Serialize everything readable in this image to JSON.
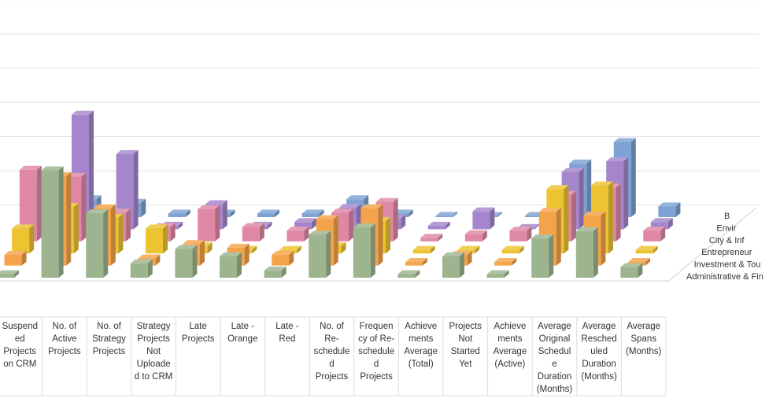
{
  "chart_data": {
    "type": "bar",
    "view": "3d-column",
    "title": "",
    "categories": [
      "Suspended Projects on CRM",
      "No. of Active Projects",
      "No. of Strategy Projects",
      "Strategy Projects Not Uploaded to CRM",
      "Late Projects",
      "Late - Orange",
      "Late - Red",
      "No. of Re-scheduled Projects",
      "Frequency of Re-schedule d Projects",
      "Achievements Average (Total)",
      "Projects Not Started Yet",
      "Achievements Average (Active)",
      "Average Original Schedule Duration (Months)",
      "Average Rescheduled Duration (Months)",
      "Average Spans (Months)"
    ],
    "category_label_lines": [
      [
        "Suspend",
        "ed",
        "Projects",
        "on CRM"
      ],
      [
        "No. of",
        "Active",
        "Projects"
      ],
      [
        "No. of",
        "Strategy",
        "Projects"
      ],
      [
        "Strategy",
        "Projects",
        "Not",
        "Uploade",
        "d to CRM"
      ],
      [
        "Late",
        "Projects"
      ],
      [
        "Late -",
        "Orange"
      ],
      [
        "Late -",
        "Red"
      ],
      [
        "No. of",
        "Re-",
        "schedule",
        "d",
        "Projects"
      ],
      [
        "Frequen",
        "cy of Re-",
        "schedule",
        "d",
        "Projects"
      ],
      [
        "Achieve",
        "ments",
        "Average",
        "(Total)"
      ],
      [
        "Projects",
        "Not",
        "Started",
        "Yet"
      ],
      [
        "Achieve",
        "ments",
        "Average",
        "(Active)"
      ],
      [
        "Average",
        "Original",
        "Schedul",
        "e",
        "Duration",
        "(Months)"
      ],
      [
        "Average",
        "Resched",
        "uled",
        "Duration",
        "(Months)"
      ],
      [
        "Average",
        "Spans",
        "(Months)"
      ]
    ],
    "series": [
      {
        "name": "Administrative & Fin",
        "color": "#9cb58f",
        "values": [
          1,
          30,
          18,
          4,
          8,
          6,
          2,
          12,
          14,
          1,
          6,
          1,
          11,
          13,
          3
        ]
      },
      {
        "name": "Investment & Tou",
        "color": "#f4a34a",
        "values": [
          3,
          25,
          16,
          2,
          6,
          5,
          3,
          13,
          16,
          1,
          3,
          1,
          15,
          14,
          1
        ]
      },
      {
        "name": "Entrepreneur",
        "color": "#ecc331",
        "values": [
          7,
          13,
          10,
          7,
          2,
          1,
          1,
          2,
          9,
          1,
          1,
          1,
          18,
          19,
          1
        ]
      },
      {
        "name": "City & Inf",
        "color": "#df88a6",
        "values": [
          20,
          18,
          8,
          4,
          9,
          4,
          3,
          8,
          11,
          1,
          2,
          3,
          13,
          15,
          3
        ]
      },
      {
        "name": "Envir",
        "color": "#a586cc",
        "values": [
          13,
          32,
          21,
          1,
          7,
          1,
          2,
          6,
          3,
          1,
          5,
          0,
          16,
          19,
          2
        ]
      },
      {
        "name": "B",
        "color": "#7da2d3",
        "values": [
          11,
          5,
          4,
          1,
          1,
          1,
          1,
          5,
          1,
          0,
          0,
          0,
          15,
          21,
          3
        ]
      }
    ],
    "legend": "series labels along right depth axis",
    "grid": true
  }
}
